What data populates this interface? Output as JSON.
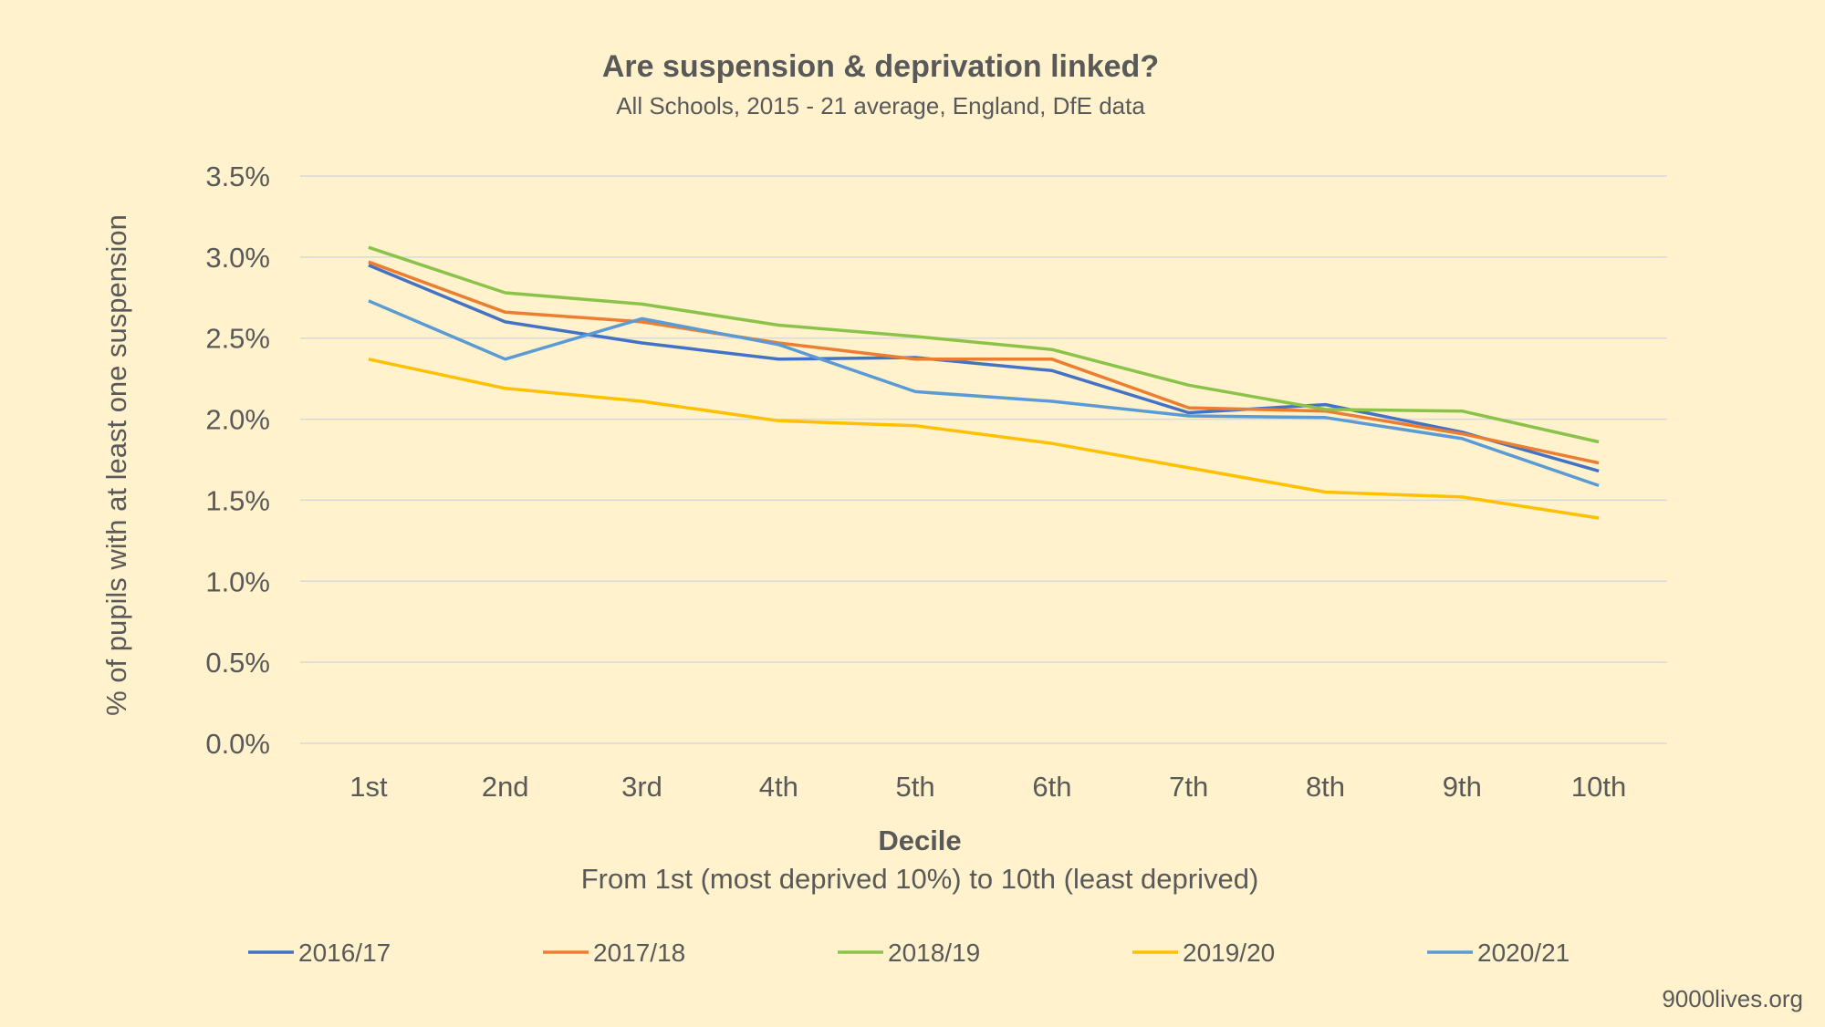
{
  "chart_data": {
    "type": "line",
    "title": "Are suspension & deprivation linked?",
    "subtitle": "All Schools, 2015 - 21 average, England, DfE data",
    "xlabel": "Decile",
    "xlabel_sub": "From 1st (most deprived 10%) to 10th (least deprived)",
    "ylabel": "% of pupils with at least one suspension",
    "categories": [
      "1st",
      "2nd",
      "3rd",
      "4th",
      "5th",
      "6th",
      "7th",
      "8th",
      "9th",
      "10th"
    ],
    "yticks": [
      "0.0%",
      "0.5%",
      "1.0%",
      "1.5%",
      "2.0%",
      "2.5%",
      "3.0%",
      "3.5%"
    ],
    "ylim": [
      0,
      3.5
    ],
    "grid": true,
    "legend_position": "bottom",
    "series": [
      {
        "name": "2016/17",
        "color": "#4472C4",
        "values": [
          2.95,
          2.6,
          2.47,
          2.37,
          2.38,
          2.3,
          2.04,
          2.09,
          1.92,
          1.68
        ]
      },
      {
        "name": "2017/18",
        "color": "#ED7D31",
        "values": [
          2.97,
          2.66,
          2.6,
          2.47,
          2.37,
          2.37,
          2.07,
          2.05,
          1.91,
          1.73
        ]
      },
      {
        "name": "2018/19",
        "color": "#8BC34A",
        "values": [
          3.06,
          2.78,
          2.71,
          2.58,
          2.51,
          2.43,
          2.21,
          2.06,
          2.05,
          1.86
        ]
      },
      {
        "name": "2019/20",
        "color": "#FFC000",
        "values": [
          2.37,
          2.19,
          2.11,
          1.99,
          1.96,
          1.85,
          1.7,
          1.55,
          1.52,
          1.39
        ]
      },
      {
        "name": "2020/21",
        "color": "#5B9BD5",
        "values": [
          2.73,
          2.37,
          2.62,
          2.46,
          2.17,
          2.11,
          2.02,
          2.01,
          1.88,
          1.59
        ]
      }
    ]
  },
  "footer": {
    "source": "9000lives.org"
  },
  "colors": {
    "background": "#FFF2CC",
    "text": "#595959",
    "grid": "#D9D9D9"
  }
}
